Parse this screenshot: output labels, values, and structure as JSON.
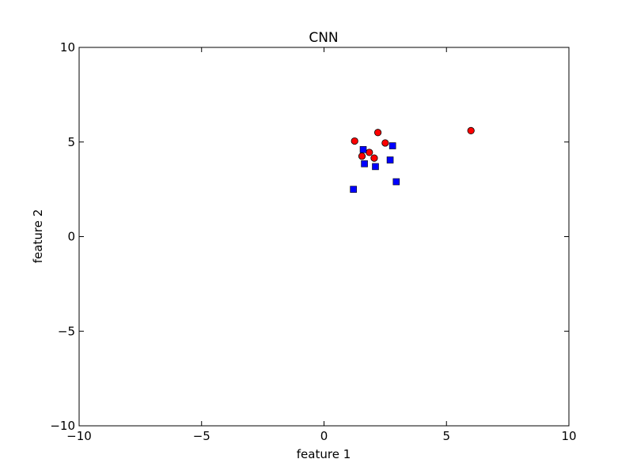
{
  "chart_data": {
    "type": "scatter",
    "title": "CNN",
    "xlabel": "feature 1",
    "ylabel": "feature 2",
    "xlim": [
      -10,
      10
    ],
    "ylim": [
      -10,
      10
    ],
    "grid": false,
    "x_ticks": [
      -10,
      -5,
      0,
      5,
      10
    ],
    "y_ticks": [
      -10,
      -5,
      0,
      5,
      10
    ],
    "x_tick_labels": [
      "−10",
      "−5",
      "0",
      "5",
      "10"
    ],
    "y_tick_labels": [
      "−10",
      "−5",
      "0",
      "5",
      "10"
    ],
    "series": [
      {
        "marker": "circle",
        "color": "#ff0000",
        "points": [
          [
            1.25,
            5.05
          ],
          [
            1.55,
            4.25
          ],
          [
            1.85,
            4.45
          ],
          [
            2.05,
            4.15
          ],
          [
            2.2,
            5.5
          ],
          [
            2.5,
            4.95
          ],
          [
            6.0,
            5.6
          ]
        ]
      },
      {
        "marker": "square",
        "color": "#0000ff",
        "points": [
          [
            1.2,
            2.5
          ],
          [
            1.6,
            4.6
          ],
          [
            1.65,
            3.85
          ],
          [
            2.1,
            3.7
          ],
          [
            2.7,
            4.05
          ],
          [
            2.8,
            4.8
          ],
          [
            2.95,
            2.9
          ]
        ]
      }
    ]
  }
}
